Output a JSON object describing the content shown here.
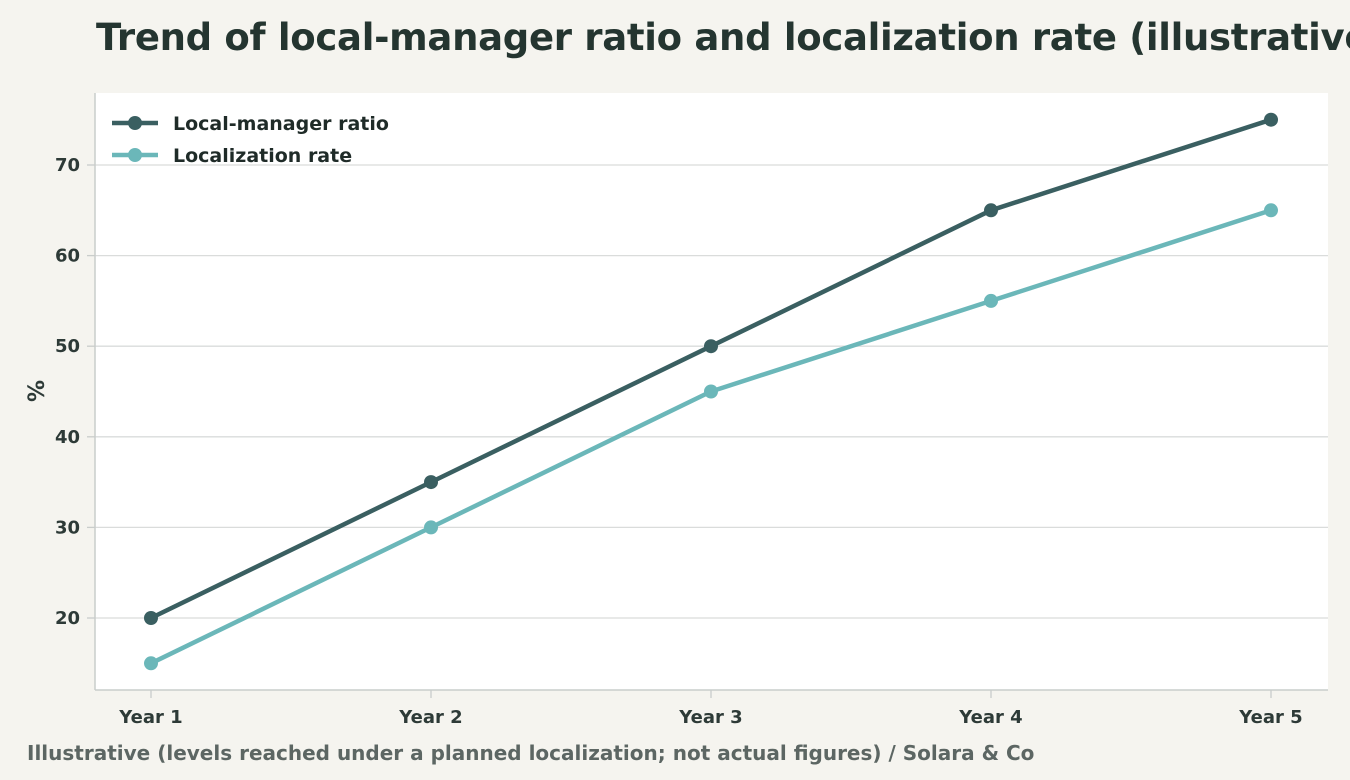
{
  "title": "Trend of local-manager ratio and localization rate (illustrative)",
  "footer": "Illustrative (levels reached under a planned localization; not actual figures) / Solara & Co",
  "colors": {
    "background": "#f5f4ef",
    "plot_background": "#ffffff",
    "grid": "#dadcdb",
    "axis": "#c9cdcb",
    "series_dark": "#3a5f61",
    "series_light": "#6bb7b9"
  },
  "chart_data": {
    "type": "line",
    "categories": [
      "Year 1",
      "Year 2",
      "Year 3",
      "Year 4",
      "Year 5"
    ],
    "series": [
      {
        "name": "Local-manager ratio",
        "values": [
          20,
          35,
          50,
          65,
          75
        ],
        "color": "#3a5f61"
      },
      {
        "name": "Localization rate",
        "values": [
          15,
          30,
          45,
          55,
          65
        ],
        "color": "#6bb7b9"
      }
    ],
    "title": "Trend of local-manager ratio and localization rate (illustrative)",
    "xlabel": "",
    "ylabel": "%",
    "yticks": [
      20,
      30,
      40,
      50,
      60,
      70
    ],
    "ylim": [
      12,
      78
    ],
    "grid": true,
    "legend": "top-left"
  }
}
